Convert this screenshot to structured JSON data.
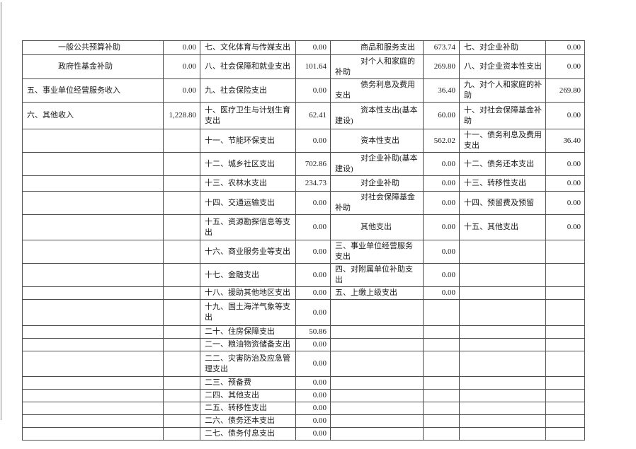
{
  "document": {
    "kind": "budget-table-fragment",
    "colors": {
      "border": "#4d4d4d",
      "text": "#1a1a1a",
      "background": "#ffffff"
    },
    "table": {
      "rows": [
        [
          "一般公共预算补助",
          "0.00",
          "七、文化体育与传媒支出",
          "0.00",
          "商品和服务支出",
          "673.74",
          "七、对企业补助",
          "0.00"
        ],
        [
          "政府性基金补助",
          "0.00",
          "八、社会保障和就业支出",
          "101.64",
          "对个人和家庭的补助",
          "269.80",
          "八、对企业资本性支出",
          "0.00"
        ],
        [
          "五、事业单位经营服务收入",
          "0.00",
          "九、社会保险支出",
          "0.00",
          "债务利息及费用支出",
          "36.40",
          "九、对个人和家庭的补助",
          "269.80"
        ],
        [
          "六、其他收入",
          "1,228.80",
          "十、医疗卫生与计划生育支出",
          "62.41",
          "资本性支出(基本建设)",
          "60.00",
          "十、对社会保障基金补助",
          "0.00"
        ],
        [
          "",
          "",
          "十一、节能环保支出",
          "0.00",
          "资本性支出",
          "562.02",
          "十一、债务利息及费用支出",
          "36.40"
        ],
        [
          "",
          "",
          "十二、城乡社区支出",
          "702.86",
          "对企业补助(基本建设)",
          "0.00",
          "十二、债务还本支出",
          "0.00"
        ],
        [
          "",
          "",
          "十三、农林水支出",
          "234.73",
          "对企业补助",
          "0.00",
          "十三、转移性支出",
          "0.00"
        ],
        [
          "",
          "",
          "十四、交通运输支出",
          "0.00",
          "对社会保障基金补助",
          "0.00",
          "十四、预留费及预留",
          "0.00"
        ],
        [
          "",
          "",
          "十五、资源勘探信息等支出",
          "0.00",
          "其他支出",
          "0.00",
          "十五、其他支出",
          "0.00"
        ],
        [
          "",
          "",
          "十六、商业服务业等支出",
          "0.00",
          "三、事业单位经营服务支出",
          "0.00",
          "",
          ""
        ],
        [
          "",
          "",
          "十七、金融支出",
          "0.00",
          "四、对附属单位补助支出",
          "0.00",
          "",
          ""
        ],
        [
          "",
          "",
          "十八、援助其他地区支出",
          "0.00",
          "五、上缴上级支出",
          "0.00",
          "",
          ""
        ],
        [
          "",
          "",
          "十九、国土海洋气象等支出",
          "0.00",
          "",
          "",
          "",
          ""
        ],
        [
          "",
          "",
          "二十、住房保障支出",
          "50.86",
          "",
          "",
          "",
          ""
        ],
        [
          "",
          "",
          "二一、粮油物资储备支出",
          "0.00",
          "",
          "",
          "",
          ""
        ],
        [
          "",
          "",
          "二二、灾害防治及应急管理支出",
          "0.00",
          "",
          "",
          "",
          ""
        ],
        [
          "",
          "",
          "二三、预备费",
          "0.00",
          "",
          "",
          "",
          ""
        ],
        [
          "",
          "",
          "二四、其他支出",
          "0.00",
          "",
          "",
          "",
          ""
        ],
        [
          "",
          "",
          "二五、转移性支出",
          "0.00",
          "",
          "",
          "",
          ""
        ],
        [
          "",
          "",
          "二六、债务还本支出",
          "0.00",
          "",
          "",
          "",
          ""
        ],
        [
          "",
          "",
          "二七、债务付息支出",
          "0.00",
          "",
          "",
          "",
          ""
        ]
      ]
    }
  }
}
